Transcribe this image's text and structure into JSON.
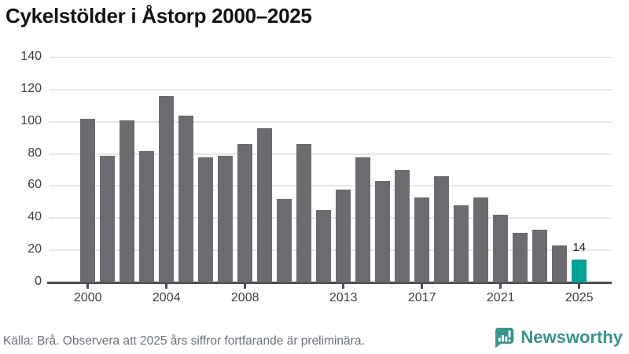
{
  "title": "Cykelstölder i Åstorp 2000–2025",
  "footer": {
    "source": "Källa: Brå. Observera att 2025 års siffror fortfarande är preliminära.",
    "brand": "Newsworthy"
  },
  "colors": {
    "bar": "#6e6b70",
    "highlight": "#00a096",
    "brand": "#3a938d",
    "grid": "#e7e7e7",
    "axis": "#4a4d52",
    "title_text": "#141414",
    "tick_text": "#3c4043",
    "footer_text": "#6d737a"
  },
  "chart_data": {
    "type": "bar",
    "title": "Cykelstölder i Åstorp 2000–2025",
    "xlabel": "",
    "ylabel": "",
    "categories": [
      2000,
      2001,
      2002,
      2003,
      2004,
      2005,
      2006,
      2007,
      2008,
      2009,
      2010,
      2011,
      2012,
      2013,
      2014,
      2015,
      2016,
      2017,
      2018,
      2019,
      2020,
      2021,
      2022,
      2023,
      2024,
      2025
    ],
    "values": [
      102,
      79,
      101,
      82,
      116,
      104,
      78,
      79,
      86,
      96,
      52,
      86,
      45,
      58,
      78,
      63,
      70,
      53,
      66,
      48,
      53,
      42,
      31,
      33,
      23,
      14
    ],
    "highlight_index": 25,
    "highlight_label": "14",
    "ylim": [
      0,
      140
    ],
    "ytick_step": 20,
    "yticks": [
      0,
      20,
      40,
      60,
      80,
      100,
      120,
      140
    ],
    "xticks": [
      2000,
      2004,
      2008,
      2013,
      2017,
      2021,
      2025
    ],
    "grid": true,
    "legend": false
  }
}
